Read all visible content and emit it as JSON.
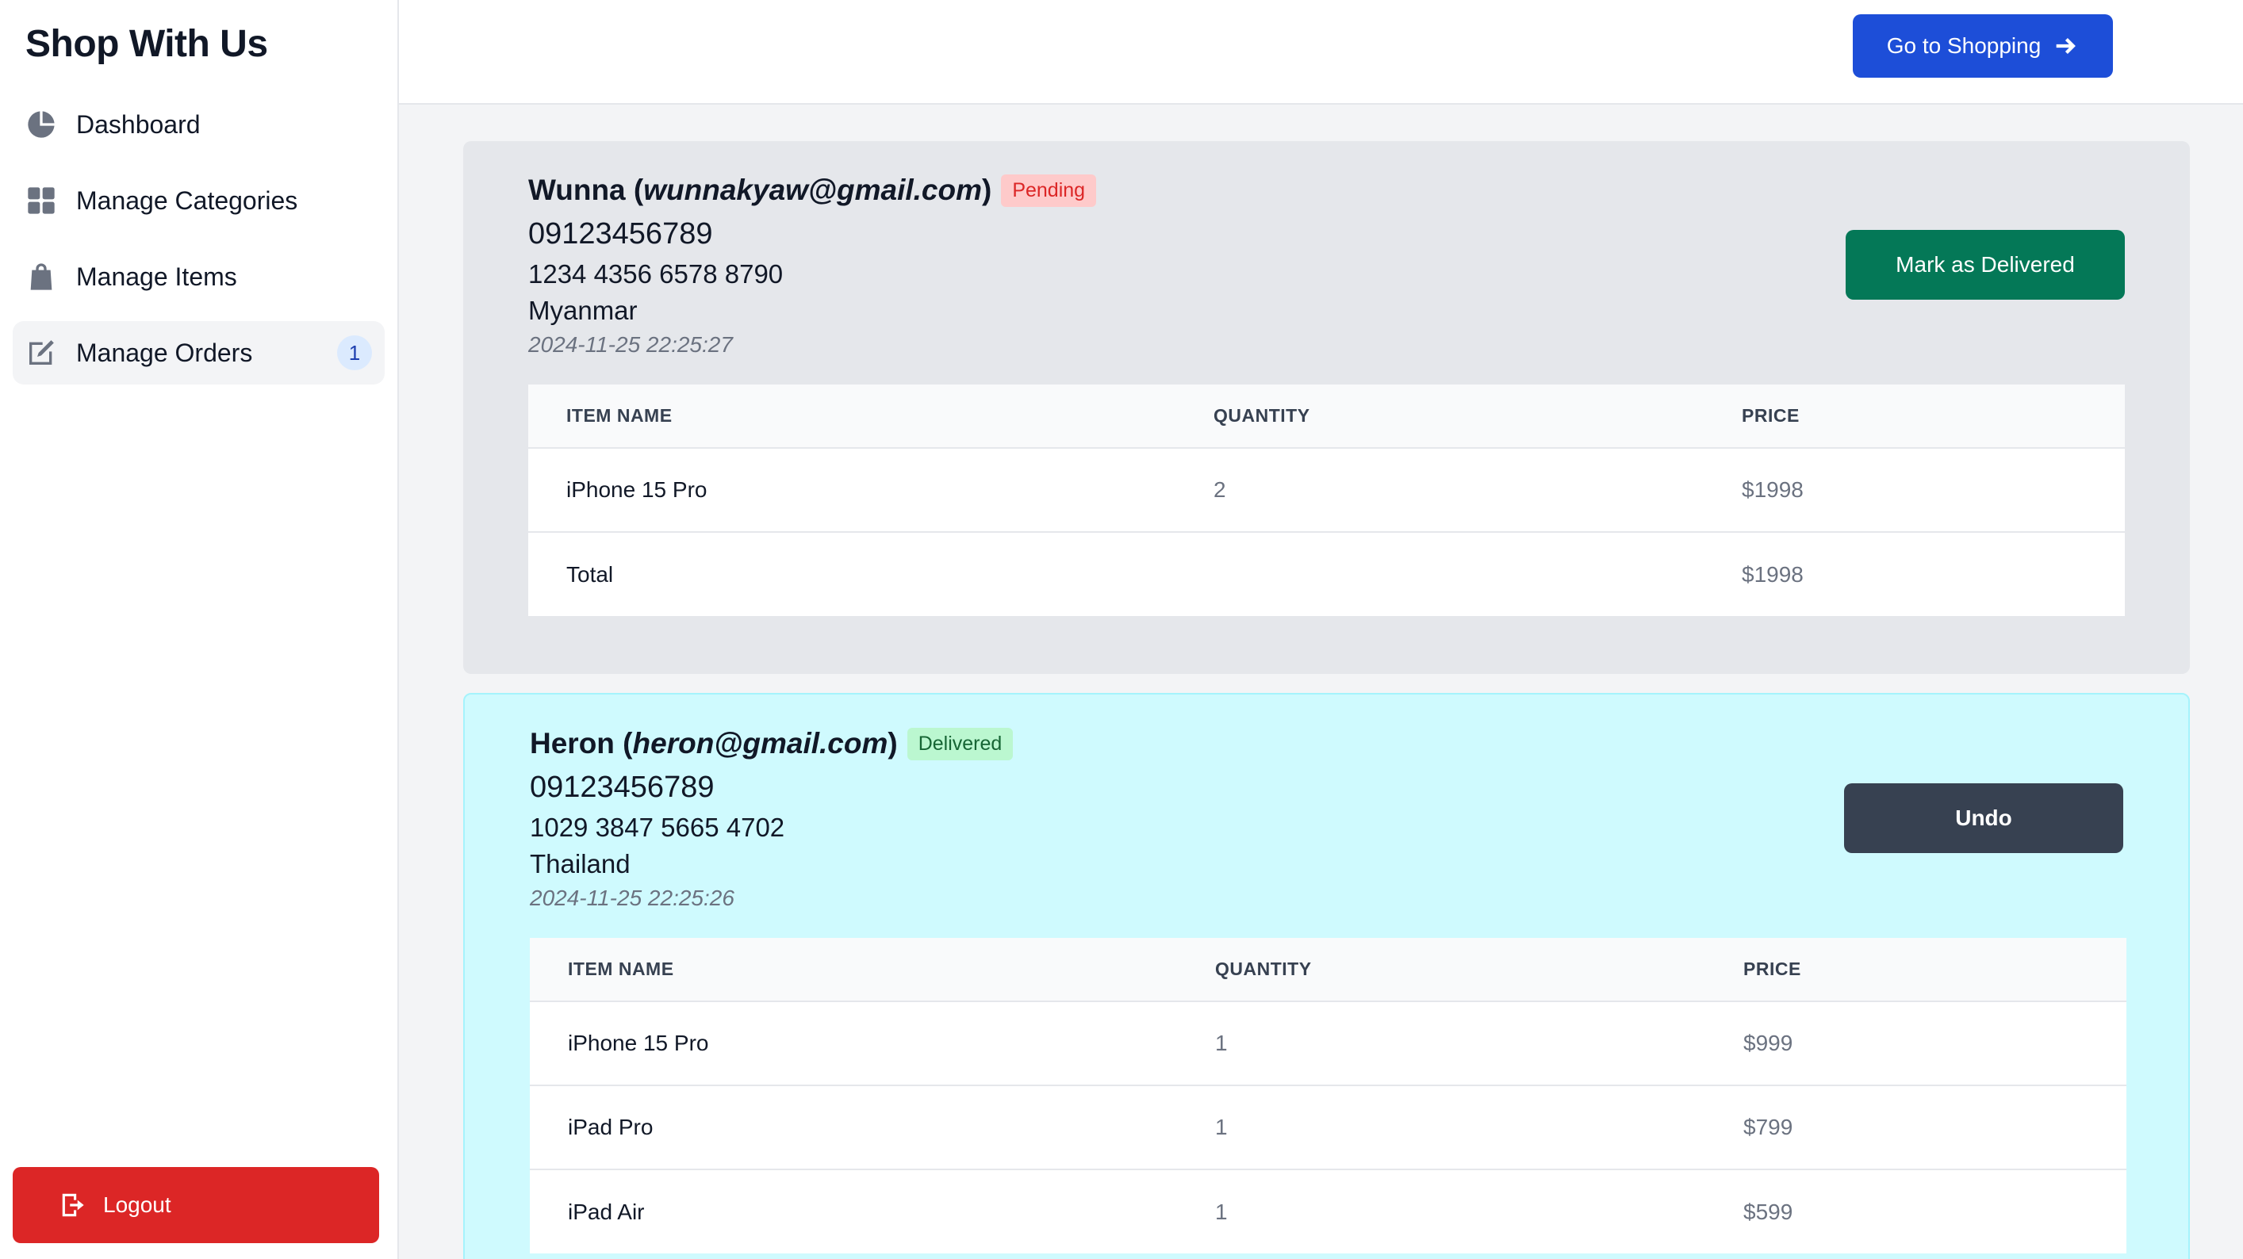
{
  "sidebar": {
    "brand": "Shop With Us",
    "items": [
      {
        "label": "Dashboard",
        "icon": "pie-chart-icon"
      },
      {
        "label": "Manage Categories",
        "icon": "grid-icon"
      },
      {
        "label": "Manage Items",
        "icon": "shopping-bag-icon"
      },
      {
        "label": "Manage Orders",
        "icon": "edit-icon",
        "badge": "1",
        "active": true
      }
    ],
    "logout_label": "Logout"
  },
  "topbar": {
    "go_shopping_label": "Go to Shopping"
  },
  "table_headers": {
    "item_name": "ITEM NAME",
    "quantity": "QUANTITY",
    "price": "PRICE"
  },
  "orders": [
    {
      "name": "Wunna",
      "email": "wunnakyaw@gmail.com",
      "status": "Pending",
      "phone": "09123456789",
      "card": "1234 4356 6578 8790",
      "country": "Myanmar",
      "timestamp": "2024-11-25 22:25:27",
      "action_label": "Mark as Delivered",
      "items": [
        {
          "name": "iPhone 15 Pro",
          "quantity": "2",
          "price": "$1998"
        }
      ],
      "total_label": "Total",
      "total": "$1998"
    },
    {
      "name": "Heron",
      "email": "heron@gmail.com",
      "status": "Delivered",
      "phone": "09123456789",
      "card": "1029 3847 5665 4702",
      "country": "Thailand",
      "timestamp": "2024-11-25 22:25:26",
      "action_label": "Undo",
      "items": [
        {
          "name": "iPhone 15 Pro",
          "quantity": "1",
          "price": "$999"
        },
        {
          "name": "iPad Pro",
          "quantity": "1",
          "price": "$799"
        },
        {
          "name": "iPad Air",
          "quantity": "1",
          "price": "$599"
        }
      ]
    }
  ],
  "colors": {
    "primary": "#1d4ed8",
    "success": "#047857",
    "danger": "#dc2626",
    "pending_card": "#e5e7eb",
    "delivered_card": "#cffafe"
  }
}
